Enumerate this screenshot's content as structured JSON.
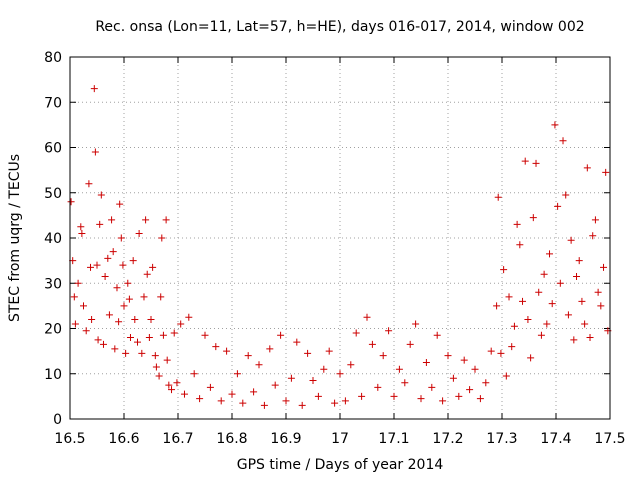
{
  "chart_data": {
    "type": "scatter",
    "title": "Rec. onsa (Lon=11, Lat=57, h=HE), days 016-017, 2014, window 002",
    "xlabel": "GPS time / Days of year 2014",
    "ylabel": "STEC from uqrg / TECUs",
    "xlim": [
      16.5,
      17.5
    ],
    "ylim": [
      0,
      80
    ],
    "xticks": [
      16.5,
      16.6,
      16.7,
      16.8,
      16.9,
      17.0,
      17.1,
      17.2,
      17.3,
      17.4,
      17.5
    ],
    "xtick_labels": [
      "16.5",
      "16.6",
      "16.7",
      "16.8",
      "16.9",
      "17",
      "17.1",
      "17.2",
      "17.3",
      "17.4",
      "17.5"
    ],
    "yticks": [
      0,
      10,
      20,
      30,
      40,
      50,
      60,
      70,
      80
    ],
    "ytick_labels": [
      "0",
      "10",
      "20",
      "30",
      "40",
      "50",
      "60",
      "70",
      "80"
    ],
    "grid": true,
    "legend": "none",
    "marker": "plus",
    "marker_color": "#cc0000",
    "series": [
      {
        "name": "STEC",
        "points": [
          [
            16.502,
            48.0
          ],
          [
            16.505,
            35.0
          ],
          [
            16.508,
            27.0
          ],
          [
            16.51,
            21.0
          ],
          [
            16.515,
            30.0
          ],
          [
            16.52,
            42.5
          ],
          [
            16.522,
            41.0
          ],
          [
            16.525,
            25.0
          ],
          [
            16.53,
            19.5
          ],
          [
            16.535,
            52.0
          ],
          [
            16.538,
            33.5
          ],
          [
            16.54,
            22.0
          ],
          [
            16.545,
            73.0
          ],
          [
            16.547,
            59.0
          ],
          [
            16.55,
            34.0
          ],
          [
            16.552,
            17.5
          ],
          [
            16.555,
            43.0
          ],
          [
            16.558,
            49.5
          ],
          [
            16.562,
            16.5
          ],
          [
            16.565,
            31.5
          ],
          [
            16.57,
            35.5
          ],
          [
            16.573,
            23.0
          ],
          [
            16.577,
            44.0
          ],
          [
            16.58,
            37.0
          ],
          [
            16.583,
            15.5
          ],
          [
            16.587,
            29.0
          ],
          [
            16.59,
            21.5
          ],
          [
            16.592,
            47.5
          ],
          [
            16.595,
            40.0
          ],
          [
            16.598,
            34.0
          ],
          [
            16.6,
            25.0
          ],
          [
            16.603,
            14.5
          ],
          [
            16.607,
            30.0
          ],
          [
            16.61,
            26.5
          ],
          [
            16.612,
            18.0
          ],
          [
            16.617,
            35.0
          ],
          [
            16.62,
            22.0
          ],
          [
            16.625,
            17.0
          ],
          [
            16.628,
            41.0
          ],
          [
            16.633,
            14.5
          ],
          [
            16.637,
            27.0
          ],
          [
            16.64,
            44.0
          ],
          [
            16.643,
            32.0
          ],
          [
            16.647,
            18.0
          ],
          [
            16.65,
            22.0
          ],
          [
            16.653,
            33.5
          ],
          [
            16.658,
            14.0
          ],
          [
            16.66,
            11.5
          ],
          [
            16.665,
            9.5
          ],
          [
            16.668,
            27.0
          ],
          [
            16.67,
            40.0
          ],
          [
            16.673,
            18.5
          ],
          [
            16.678,
            44.0
          ],
          [
            16.68,
            13.0
          ],
          [
            16.683,
            7.5
          ],
          [
            16.688,
            6.5
          ],
          [
            16.693,
            19.0
          ],
          [
            16.698,
            8.0
          ],
          [
            16.705,
            21.0
          ],
          [
            16.712,
            5.5
          ],
          [
            16.72,
            22.5
          ],
          [
            16.73,
            10.0
          ],
          [
            16.74,
            4.5
          ],
          [
            16.75,
            18.5
          ],
          [
            16.76,
            7.0
          ],
          [
            16.77,
            16.0
          ],
          [
            16.78,
            4.0
          ],
          [
            16.79,
            15.0
          ],
          [
            16.8,
            5.5
          ],
          [
            16.81,
            10.0
          ],
          [
            16.82,
            3.5
          ],
          [
            16.83,
            14.0
          ],
          [
            16.84,
            6.0
          ],
          [
            16.85,
            12.0
          ],
          [
            16.86,
            3.0
          ],
          [
            16.87,
            15.5
          ],
          [
            16.88,
            7.5
          ],
          [
            16.89,
            18.5
          ],
          [
            16.9,
            4.0
          ],
          [
            16.91,
            9.0
          ],
          [
            16.92,
            17.0
          ],
          [
            16.93,
            3.0
          ],
          [
            16.94,
            14.5
          ],
          [
            16.95,
            8.5
          ],
          [
            16.96,
            5.0
          ],
          [
            16.97,
            11.0
          ],
          [
            16.98,
            15.0
          ],
          [
            16.99,
            3.5
          ],
          [
            17.0,
            10.0
          ],
          [
            17.01,
            4.0
          ],
          [
            17.02,
            12.0
          ],
          [
            17.03,
            19.0
          ],
          [
            17.04,
            5.0
          ],
          [
            17.05,
            22.5
          ],
          [
            17.06,
            16.5
          ],
          [
            17.07,
            7.0
          ],
          [
            17.08,
            14.0
          ],
          [
            17.09,
            19.5
          ],
          [
            17.1,
            5.0
          ],
          [
            17.11,
            11.0
          ],
          [
            17.12,
            8.0
          ],
          [
            17.13,
            16.5
          ],
          [
            17.14,
            21.0
          ],
          [
            17.15,
            4.5
          ],
          [
            17.16,
            12.5
          ],
          [
            17.17,
            7.0
          ],
          [
            17.18,
            18.5
          ],
          [
            17.19,
            4.0
          ],
          [
            17.2,
            14.0
          ],
          [
            17.21,
            9.0
          ],
          [
            17.22,
            5.0
          ],
          [
            17.23,
            13.0
          ],
          [
            17.24,
            6.5
          ],
          [
            17.25,
            11.0
          ],
          [
            17.26,
            4.5
          ],
          [
            17.27,
            8.0
          ],
          [
            17.28,
            15.0
          ],
          [
            17.29,
            25.0
          ],
          [
            17.293,
            49.0
          ],
          [
            17.298,
            14.5
          ],
          [
            17.303,
            33.0
          ],
          [
            17.308,
            9.5
          ],
          [
            17.313,
            27.0
          ],
          [
            17.318,
            16.0
          ],
          [
            17.323,
            20.5
          ],
          [
            17.328,
            43.0
          ],
          [
            17.333,
            38.5
          ],
          [
            17.338,
            26.0
          ],
          [
            17.343,
            57.0
          ],
          [
            17.348,
            22.0
          ],
          [
            17.353,
            13.5
          ],
          [
            17.358,
            44.5
          ],
          [
            17.363,
            56.5
          ],
          [
            17.368,
            28.0
          ],
          [
            17.373,
            18.5
          ],
          [
            17.378,
            32.0
          ],
          [
            17.383,
            21.0
          ],
          [
            17.388,
            36.5
          ],
          [
            17.393,
            25.5
          ],
          [
            17.398,
            65.0
          ],
          [
            17.403,
            47.0
          ],
          [
            17.408,
            30.0
          ],
          [
            17.413,
            61.5
          ],
          [
            17.418,
            49.5
          ],
          [
            17.423,
            23.0
          ],
          [
            17.428,
            39.5
          ],
          [
            17.433,
            17.5
          ],
          [
            17.438,
            31.5
          ],
          [
            17.443,
            35.0
          ],
          [
            17.448,
            26.0
          ],
          [
            17.453,
            21.0
          ],
          [
            17.458,
            55.5
          ],
          [
            17.463,
            18.0
          ],
          [
            17.468,
            40.5
          ],
          [
            17.473,
            44.0
          ],
          [
            17.478,
            28.0
          ],
          [
            17.483,
            25.0
          ],
          [
            17.488,
            33.5
          ],
          [
            17.492,
            54.5
          ],
          [
            17.496,
            19.5
          ]
        ]
      }
    ]
  }
}
